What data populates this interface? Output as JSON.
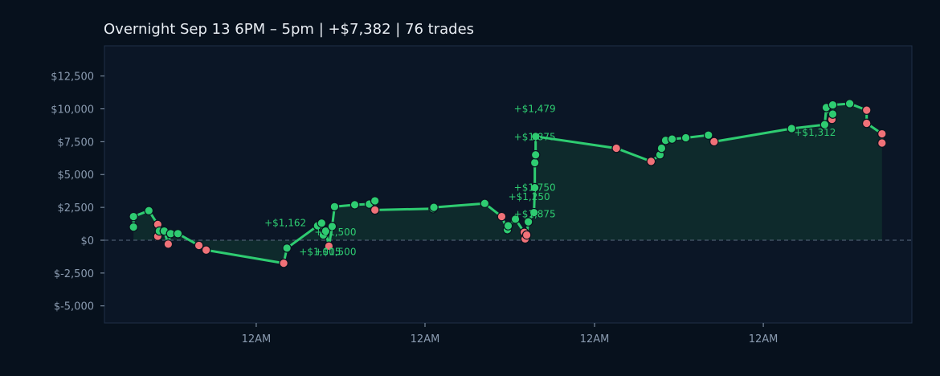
{
  "chart_data": {
    "type": "line",
    "title": "Overnight  Sep 13 6PM – 5pm  |  +$7,382  |  76 trades",
    "xlabel": "",
    "ylabel": "",
    "ylim": [
      -6300,
      14800
    ],
    "yticks": [
      -5000,
      -2500,
      0,
      2500,
      5000,
      7500,
      10000,
      12500
    ],
    "ytick_labels": [
      "$-5,000",
      "$-2,500",
      "$0",
      "$2,500",
      "$5,000",
      "$7,500",
      "$10,000",
      "$12,500"
    ],
    "xlim": [
      0,
      100
    ],
    "xticks": [
      18.8,
      39.7,
      60.7,
      81.6
    ],
    "xtick_labels": [
      "12AM",
      "12AM",
      "12AM",
      "12AM"
    ],
    "grid": false,
    "colors": {
      "line": "#2ecc71",
      "fill": "#0f2e2e",
      "win": "#2ecc71",
      "loss": "#f07178",
      "zero": "#5a6a80",
      "axes_bg": "#0b1626",
      "border": "#1f3048"
    },
    "series": [
      {
        "values": [
          [
            3.6,
            1000
          ],
          [
            3.6,
            1800
          ],
          [
            5.5,
            2250
          ],
          [
            6.6,
            1200
          ],
          [
            6.6,
            300
          ],
          [
            6.8,
            700
          ],
          [
            7.4,
            700
          ],
          [
            7.9,
            -300
          ],
          [
            8.2,
            500
          ],
          [
            9.1,
            500
          ],
          [
            11.7,
            -400
          ],
          [
            12.6,
            -750
          ],
          [
            22.2,
            -1750
          ],
          [
            22.6,
            -600
          ],
          [
            26.4,
            1100
          ],
          [
            26.9,
            1300
          ],
          [
            27.1,
            400
          ],
          [
            27.4,
            700
          ],
          [
            27.8,
            -450
          ],
          [
            28.2,
            1050
          ],
          [
            28.5,
            2550
          ],
          [
            31.0,
            2700
          ],
          [
            32.8,
            2750
          ],
          [
            33.5,
            3000
          ],
          [
            33.5,
            2300
          ],
          [
            40.7,
            2400
          ],
          [
            40.8,
            2500
          ],
          [
            47.1,
            2800
          ],
          [
            49.2,
            1800
          ],
          [
            49.9,
            800
          ],
          [
            50.0,
            1100
          ],
          [
            50.9,
            1600
          ],
          [
            52.0,
            600
          ],
          [
            52.1,
            100
          ],
          [
            52.3,
            400
          ],
          [
            52.5,
            1400
          ],
          [
            53.2,
            2100
          ],
          [
            53.3,
            4000
          ],
          [
            53.3,
            5900
          ],
          [
            53.4,
            6500
          ],
          [
            53.4,
            7900
          ],
          [
            63.4,
            7000
          ],
          [
            67.7,
            6000
          ],
          [
            68.8,
            6500
          ],
          [
            69.0,
            7000
          ],
          [
            69.5,
            7600
          ],
          [
            70.3,
            7700
          ],
          [
            72.0,
            7800
          ],
          [
            74.8,
            8000
          ],
          [
            75.5,
            7500
          ],
          [
            85.1,
            8500
          ],
          [
            89.2,
            8800
          ],
          [
            89.4,
            10100
          ],
          [
            90.1,
            9200
          ],
          [
            90.2,
            9600
          ],
          [
            90.2,
            10300
          ],
          [
            92.3,
            10400
          ],
          [
            94.4,
            9900
          ],
          [
            94.4,
            8900
          ],
          [
            96.3,
            8100
          ],
          [
            96.3,
            7400
          ]
        ],
        "outcomes": [
          "win",
          "win",
          "win",
          "loss",
          "loss",
          "win",
          "win",
          "loss",
          "win",
          "win",
          "loss",
          "loss",
          "loss",
          "win",
          "win",
          "win",
          "win",
          "win",
          "loss",
          "win",
          "win",
          "win",
          "win",
          "win",
          "loss",
          "win",
          "win",
          "win",
          "loss",
          "win",
          "win",
          "win",
          "loss",
          "loss",
          "loss",
          "win",
          "win",
          "win",
          "win",
          "win",
          "win",
          "loss",
          "loss",
          "win",
          "win",
          "win",
          "win",
          "win",
          "win",
          "loss",
          "win",
          "win",
          "win",
          "loss",
          "win",
          "win",
          "win",
          "loss",
          "loss",
          "loss",
          "loss"
        ]
      }
    ],
    "annotations": [
      {
        "text": "+$1,162",
        "x": 22.4,
        "y": 1300
      },
      {
        "text": "+$1,500",
        "x": 28.6,
        "y": 600
      },
      {
        "text": "+$1,500",
        "x": 28.6,
        "y": -900
      },
      {
        "text": "+$1,005",
        "x": 26.7,
        "y": -900
      },
      {
        "text": "+$1,479",
        "x": 53.3,
        "y": 10000
      },
      {
        "text": "+$1,875",
        "x": 53.3,
        "y": 7850
      },
      {
        "text": "+$1,750",
        "x": 53.3,
        "y": 4000
      },
      {
        "text": "+$1,250",
        "x": 52.6,
        "y": 3300
      },
      {
        "text": "+$1,875",
        "x": 53.3,
        "y": 2000
      },
      {
        "text": "+$1,312",
        "x": 88.0,
        "y": 8200
      }
    ]
  }
}
